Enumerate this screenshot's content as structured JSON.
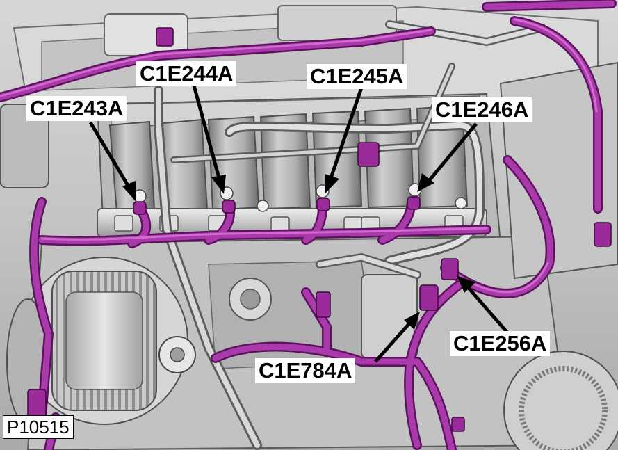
{
  "callouts": {
    "c1e243a": "C1E243A",
    "c1e244a": "C1E244A",
    "c1e245a": "C1E245A",
    "c1e246a": "C1E246A",
    "c1e256a": "C1E256A",
    "c1e784a": "C1E784A"
  },
  "figure_id": "P10515",
  "colors": {
    "harness": "#9b2a9b",
    "harness_highlight": "#d46ad4",
    "metal_light": "#d8d8d8",
    "metal_dark": "#8a8a8a",
    "arrow": "#000000"
  }
}
